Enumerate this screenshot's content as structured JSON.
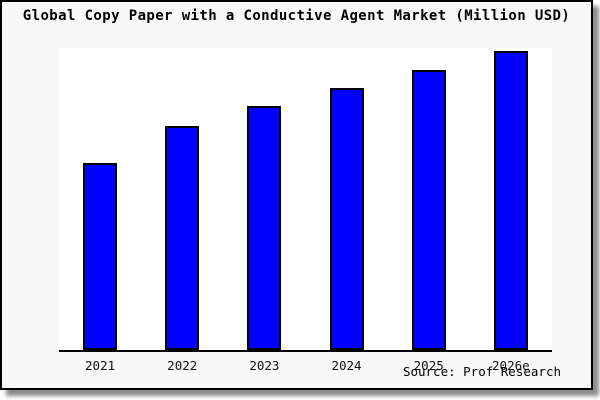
{
  "window": {
    "background_color": "#ffffff",
    "card_background_color": "#f8f8f8",
    "card_border_color": "#000000"
  },
  "chart_data": {
    "type": "bar",
    "title": "Global Copy Paper with a Conductive Agent Market (Million USD)",
    "categories": [
      "2021",
      "2022",
      "2023",
      "2024",
      "2025",
      "2026e"
    ],
    "values": [
      62.5,
      75,
      81.5,
      87.5,
      93.5,
      100
    ],
    "values_note": "No y-axis ticks or data labels are shown; values estimated from relative bar heights, indexed to 2026e = 100",
    "ylim": [
      0,
      101
    ],
    "xlabel": "",
    "ylabel": "",
    "grid": false,
    "legend": false,
    "bar_color": "#0000ff",
    "bar_border_color": "#000000",
    "axis_color": "#000000",
    "source": "Source: Prof Research"
  }
}
